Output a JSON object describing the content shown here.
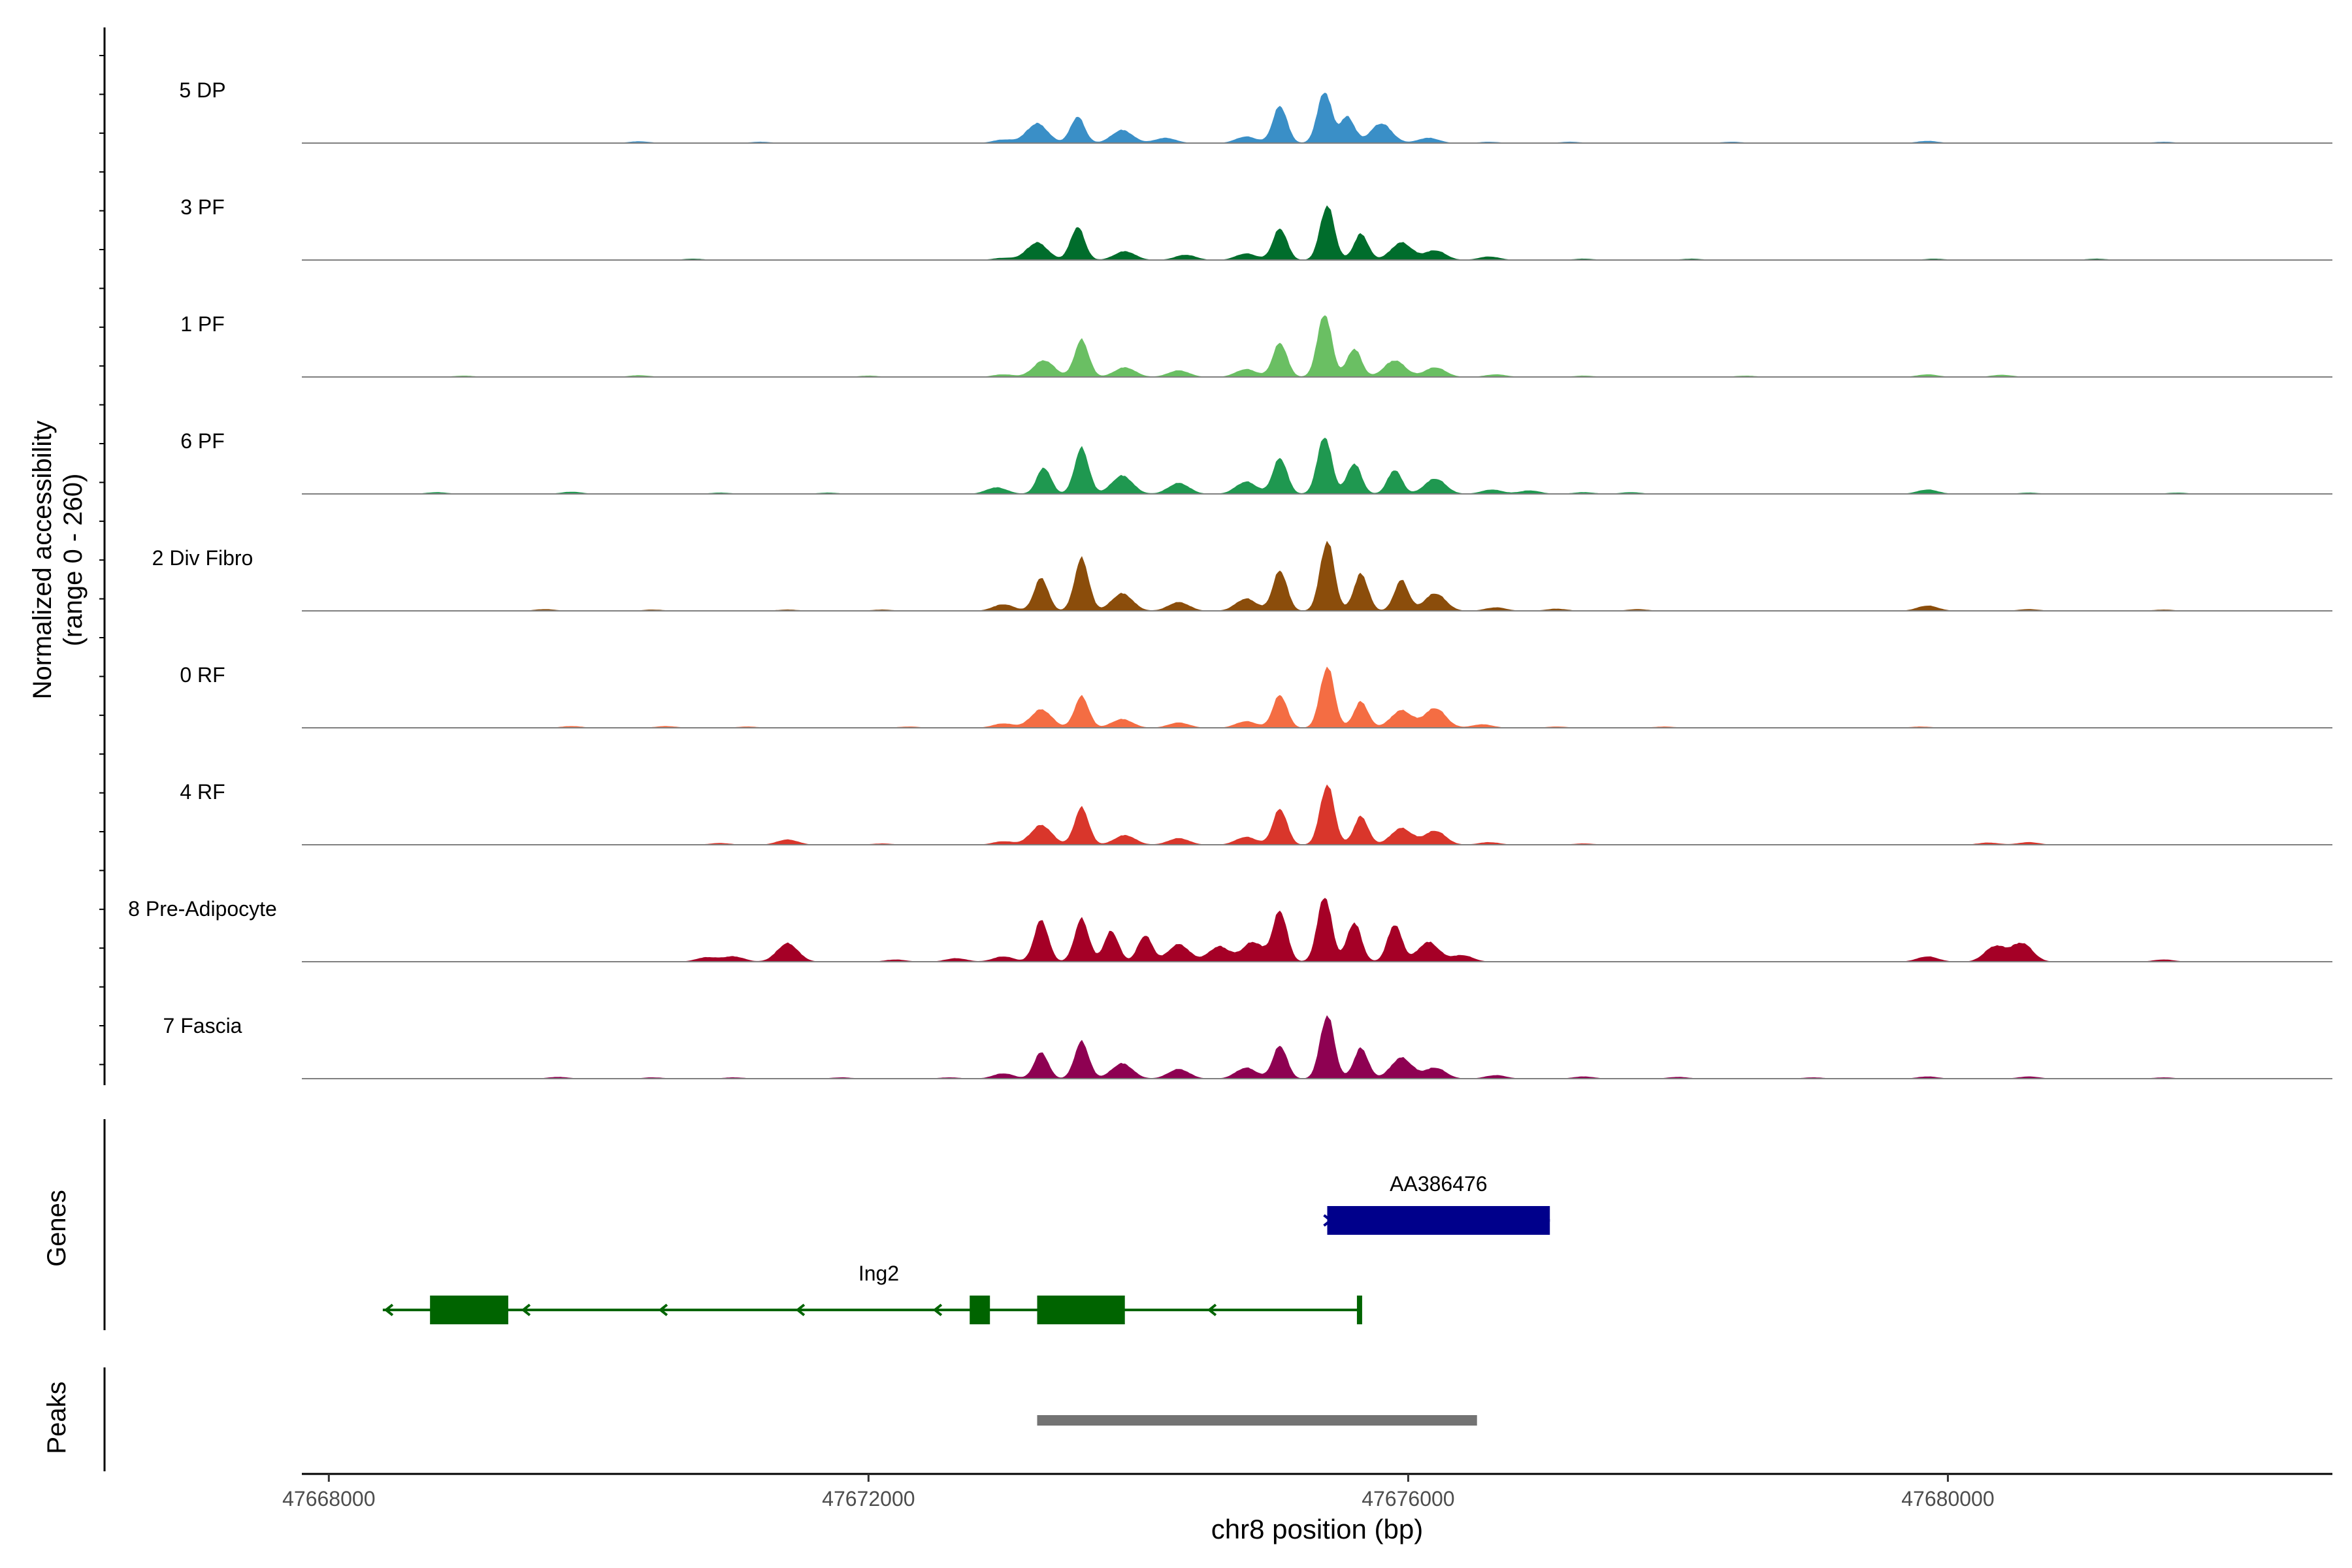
{
  "chart_data": {
    "type": "area",
    "title": "",
    "ylabel": "Normalized accessibility",
    "ylabel_range": "(range 0 - 260)",
    "xlabel": "chr8 position (bp)",
    "xlim": [
      47667800,
      47682850
    ],
    "ylim": [
      0,
      260
    ],
    "x_ticks": [
      47668000,
      47672000,
      47676000,
      47680000
    ],
    "x_tick_labels": [
      "47668000",
      "47672000",
      "47676000",
      "47680000"
    ],
    "tracks": [
      {
        "name": "5 DP",
        "color": "#3182bd",
        "fill": "#3a8fc7",
        "peaks": [
          [
            47670300,
            4
          ],
          [
            47671200,
            3
          ],
          [
            47673000,
            8
          ],
          [
            47673250,
            45
          ],
          [
            47673550,
            60
          ],
          [
            47673880,
            30
          ],
          [
            47674200,
            12
          ],
          [
            47674800,
            15
          ],
          [
            47675050,
            85
          ],
          [
            47675380,
            118
          ],
          [
            47675550,
            60
          ],
          [
            47675800,
            45
          ],
          [
            47676150,
            12
          ],
          [
            47676600,
            3
          ],
          [
            47677200,
            3
          ],
          [
            47678400,
            3
          ],
          [
            47679850,
            5
          ],
          [
            47681600,
            3
          ]
        ]
      },
      {
        "name": "3 PF",
        "color": "#006d2c",
        "fill": "#006d2c",
        "peaks": [
          [
            47670700,
            3
          ],
          [
            47673000,
            5
          ],
          [
            47673250,
            40
          ],
          [
            47673550,
            75
          ],
          [
            47673900,
            20
          ],
          [
            47674350,
            12
          ],
          [
            47674800,
            15
          ],
          [
            47675050,
            72
          ],
          [
            47675400,
            125
          ],
          [
            47675650,
            60
          ],
          [
            47675950,
            40
          ],
          [
            47676200,
            22
          ],
          [
            47676600,
            8
          ],
          [
            47677300,
            3
          ],
          [
            47678100,
            3
          ],
          [
            47679900,
            3
          ],
          [
            47681100,
            3
          ]
        ]
      },
      {
        "name": "1 PF",
        "color": "#5cb85c",
        "fill": "#6abf63",
        "peaks": [
          [
            47669000,
            3
          ],
          [
            47670300,
            4
          ],
          [
            47672000,
            3
          ],
          [
            47673000,
            6
          ],
          [
            47673300,
            38
          ],
          [
            47673580,
            85
          ],
          [
            47673900,
            22
          ],
          [
            47674300,
            15
          ],
          [
            47674800,
            18
          ],
          [
            47675050,
            78
          ],
          [
            47675380,
            145
          ],
          [
            47675600,
            65
          ],
          [
            47675900,
            38
          ],
          [
            47676200,
            22
          ],
          [
            47676650,
            6
          ],
          [
            47677300,
            3
          ],
          [
            47678500,
            3
          ],
          [
            47679850,
            6
          ],
          [
            47680400,
            5
          ]
        ]
      },
      {
        "name": "6 PF",
        "color": "#1a8a3f",
        "fill": "#1f9850",
        "peaks": [
          [
            47668800,
            4
          ],
          [
            47669800,
            5
          ],
          [
            47670900,
            3
          ],
          [
            47671700,
            3
          ],
          [
            47672950,
            15
          ],
          [
            47673300,
            60
          ],
          [
            47673580,
            105
          ],
          [
            47673880,
            42
          ],
          [
            47674300,
            25
          ],
          [
            47674800,
            28
          ],
          [
            47675050,
            82
          ],
          [
            47675380,
            132
          ],
          [
            47675600,
            70
          ],
          [
            47675900,
            55
          ],
          [
            47676200,
            35
          ],
          [
            47676620,
            10
          ],
          [
            47676900,
            8
          ],
          [
            47677300,
            4
          ],
          [
            47677650,
            4
          ],
          [
            47679850,
            10
          ],
          [
            47680600,
            3
          ],
          [
            47681700,
            3
          ]
        ]
      },
      {
        "name": "2 Div Fibro",
        "color": "#8b4d0b",
        "fill": "#8b4d0b",
        "peaks": [
          [
            47669600,
            4
          ],
          [
            47670400,
            3
          ],
          [
            47671400,
            3
          ],
          [
            47672100,
            3
          ],
          [
            47673000,
            15
          ],
          [
            47673280,
            75
          ],
          [
            47673580,
            120
          ],
          [
            47673880,
            40
          ],
          [
            47674300,
            20
          ],
          [
            47674800,
            28
          ],
          [
            47675050,
            92
          ],
          [
            47675400,
            160
          ],
          [
            47675650,
            85
          ],
          [
            47675950,
            70
          ],
          [
            47676200,
            40
          ],
          [
            47676650,
            8
          ],
          [
            47677100,
            5
          ],
          [
            47677700,
            4
          ],
          [
            47679850,
            12
          ],
          [
            47680600,
            4
          ],
          [
            47681600,
            3
          ]
        ]
      },
      {
        "name": "0 RF",
        "color": "#f26b43",
        "fill": "#f46d43",
        "peaks": [
          [
            47669800,
            4
          ],
          [
            47670500,
            4
          ],
          [
            47671100,
            3
          ],
          [
            47672300,
            3
          ],
          [
            47673000,
            10
          ],
          [
            47673280,
            42
          ],
          [
            47673580,
            72
          ],
          [
            47673880,
            20
          ],
          [
            47674300,
            12
          ],
          [
            47674800,
            15
          ],
          [
            47675050,
            75
          ],
          [
            47675400,
            140
          ],
          [
            47675650,
            60
          ],
          [
            47675950,
            40
          ],
          [
            47676200,
            45
          ],
          [
            47676550,
            8
          ],
          [
            47677100,
            3
          ],
          [
            47677900,
            3
          ],
          [
            47679800,
            3
          ]
        ]
      },
      {
        "name": "4 RF",
        "color": "#d73027",
        "fill": "#d9362b",
        "peaks": [
          [
            47670900,
            4
          ],
          [
            47671400,
            12
          ],
          [
            47672100,
            3
          ],
          [
            47673000,
            8
          ],
          [
            47673280,
            45
          ],
          [
            47673580,
            85
          ],
          [
            47673900,
            22
          ],
          [
            47674300,
            15
          ],
          [
            47674800,
            18
          ],
          [
            47675050,
            82
          ],
          [
            47675400,
            138
          ],
          [
            47675650,
            65
          ],
          [
            47675950,
            38
          ],
          [
            47676200,
            32
          ],
          [
            47676600,
            6
          ],
          [
            47677300,
            3
          ],
          [
            47680300,
            5
          ],
          [
            47680600,
            6
          ]
        ]
      },
      {
        "name": "8 Pre-Adipocyte",
        "color": "#a50026",
        "fill": "#a50026",
        "peaks": [
          [
            47670800,
            10
          ],
          [
            47671000,
            12
          ],
          [
            47671400,
            42
          ],
          [
            47672200,
            5
          ],
          [
            47672650,
            8
          ],
          [
            47673000,
            12
          ],
          [
            47673280,
            95
          ],
          [
            47673580,
            98
          ],
          [
            47673800,
            70
          ],
          [
            47674050,
            60
          ],
          [
            47674300,
            40
          ],
          [
            47674600,
            35
          ],
          [
            47674850,
            45
          ],
          [
            47675050,
            115
          ],
          [
            47675380,
            150
          ],
          [
            47675600,
            90
          ],
          [
            47675900,
            85
          ],
          [
            47676150,
            45
          ],
          [
            47676400,
            15
          ],
          [
            47679850,
            12
          ],
          [
            47680350,
            35
          ],
          [
            47680550,
            42
          ],
          [
            47681600,
            5
          ]
        ]
      },
      {
        "name": "7 Fascia",
        "color": "#8e0152",
        "fill": "#8e0152",
        "peaks": [
          [
            47669700,
            4
          ],
          [
            47670400,
            3
          ],
          [
            47671000,
            3
          ],
          [
            47671800,
            3
          ],
          [
            47672600,
            3
          ],
          [
            47673000,
            12
          ],
          [
            47673280,
            60
          ],
          [
            47673580,
            85
          ],
          [
            47673880,
            35
          ],
          [
            47674300,
            22
          ],
          [
            47674800,
            25
          ],
          [
            47675050,
            75
          ],
          [
            47675400,
            145
          ],
          [
            47675650,
            70
          ],
          [
            47675950,
            48
          ],
          [
            47676200,
            25
          ],
          [
            47676650,
            8
          ],
          [
            47677300,
            5
          ],
          [
            47678000,
            4
          ],
          [
            47679000,
            3
          ],
          [
            47679850,
            5
          ],
          [
            47680600,
            5
          ],
          [
            47681600,
            3
          ]
        ]
      }
    ],
    "genes": [
      {
        "name": "AA386476",
        "color": "#00008b",
        "start": 47675400,
        "end": 47677050,
        "strand": "+",
        "exons": [
          [
            47675400,
            47677050
          ]
        ],
        "row": 0
      },
      {
        "name": "Ing2",
        "color": "#006400",
        "start": 47668400,
        "end": 47675650,
        "strand": "-",
        "exons": [
          [
            47668750,
            47669330
          ],
          [
            47672750,
            47672900
          ],
          [
            47673250,
            47673900
          ],
          [
            47675620,
            47675650
          ]
        ],
        "row": 1
      }
    ],
    "gene_track_label": "Genes",
    "peaks_track_label": "Peaks",
    "peak_regions": [
      [
        47673250,
        47676510
      ]
    ],
    "peak_color": "#737373"
  }
}
